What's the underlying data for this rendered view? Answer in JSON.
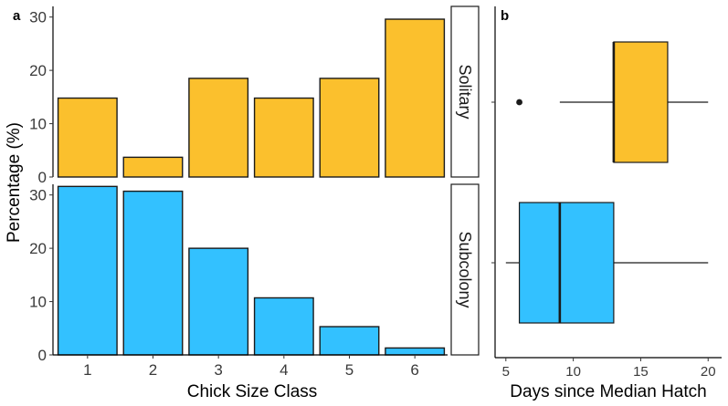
{
  "colors": {
    "solitary": "#FBC02D",
    "subcolony": "#33C1FF",
    "outline": "#1a1a1a"
  },
  "chart_data": [
    {
      "id": "panel-a",
      "type": "bar",
      "panel_label": "a",
      "xlabel": "Chick Size Class",
      "ylabel": "Percentage (%)",
      "categories": [
        "1",
        "2",
        "3",
        "4",
        "5",
        "6"
      ],
      "facets": [
        {
          "name": "Solitary",
          "values": [
            14.8,
            3.7,
            18.5,
            14.8,
            18.5,
            29.6
          ],
          "ylim": [
            0,
            32
          ],
          "yticks": [
            0,
            10,
            20,
            30
          ]
        },
        {
          "name": "Subcolony",
          "values": [
            31.6,
            30.7,
            20.0,
            10.7,
            5.3,
            1.3
          ],
          "ylim": [
            0,
            32
          ],
          "yticks": [
            0,
            10,
            20,
            30
          ]
        }
      ]
    },
    {
      "id": "panel-b",
      "type": "boxplot",
      "orientation": "horizontal",
      "panel_label": "b",
      "xlabel": "Days since Median Hatch",
      "xlim": [
        4.2,
        21
      ],
      "xticks": [
        5,
        10,
        15,
        20
      ],
      "series": [
        {
          "name": "Solitary",
          "whisker_low": 9,
          "q1": 13,
          "median": 13,
          "q3": 17,
          "whisker_high": 20,
          "outliers": [
            6
          ]
        },
        {
          "name": "Subcolony",
          "whisker_low": 5,
          "q1": 6,
          "median": 9,
          "q3": 13,
          "whisker_high": 20,
          "outliers": []
        }
      ]
    }
  ]
}
